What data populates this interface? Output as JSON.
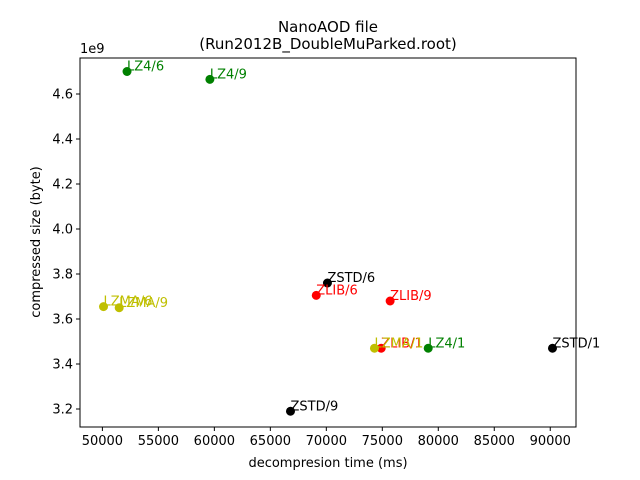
{
  "chart_data": {
    "type": "scatter",
    "title": [
      "NanoAOD file",
      "(Run2012B_DoubleMuParked.root)"
    ],
    "xlabel": "decompresion time (ms)",
    "ylabel": "compressed size (byte)",
    "y_offset_text": "1e9",
    "xlim": [
      48000,
      92300
    ],
    "ylim": [
      3.12,
      4.76
    ],
    "xticks": [
      50000,
      55000,
      60000,
      65000,
      70000,
      75000,
      80000,
      85000,
      90000
    ],
    "xtick_labels": [
      "50000",
      "55000",
      "60000",
      "65000",
      "70000",
      "75000",
      "80000",
      "85000",
      "90000"
    ],
    "yticks": [
      3.2,
      3.4,
      3.6,
      3.8,
      4.0,
      4.2,
      4.4,
      4.6
    ],
    "ytick_labels": [
      "3.2",
      "3.4",
      "3.6",
      "3.8",
      "4.0",
      "4.2",
      "4.4",
      "4.6"
    ],
    "grid": false,
    "colors": {
      "LZ4": "#008000",
      "ZLIB": "#ff0000",
      "ZSTD": "#000000",
      "LZMA": "#bfbf00"
    },
    "points": [
      {
        "label": "LZ4/6",
        "x": 52200,
        "y": 4.7,
        "color": "#008000"
      },
      {
        "label": "LZ4/9",
        "x": 59600,
        "y": 4.665,
        "color": "#008000"
      },
      {
        "label": "LZ4/1",
        "x": 79100,
        "y": 3.47,
        "color": "#008000"
      },
      {
        "label": "ZSTD/6",
        "x": 70100,
        "y": 3.76,
        "color": "#000000"
      },
      {
        "label": "ZSTD/1",
        "x": 90200,
        "y": 3.47,
        "color": "#000000"
      },
      {
        "label": "ZSTD/9",
        "x": 66800,
        "y": 3.19,
        "color": "#000000"
      },
      {
        "label": "ZLIB/6",
        "x": 69100,
        "y": 3.705,
        "color": "#ff0000"
      },
      {
        "label": "ZLIB/9",
        "x": 75700,
        "y": 3.68,
        "color": "#ff0000"
      },
      {
        "label": "ZLIB/1",
        "x": 74900,
        "y": 3.47,
        "color": "#ff0000"
      },
      {
        "label": "LZMA/6",
        "x": 50100,
        "y": 3.655,
        "color": "#bfbf00"
      },
      {
        "label": "LZMA/9",
        "x": 51500,
        "y": 3.65,
        "color": "#bfbf00"
      },
      {
        "label": "LZMA/1",
        "x": 74300,
        "y": 3.47,
        "color": "#bfbf00"
      }
    ]
  }
}
